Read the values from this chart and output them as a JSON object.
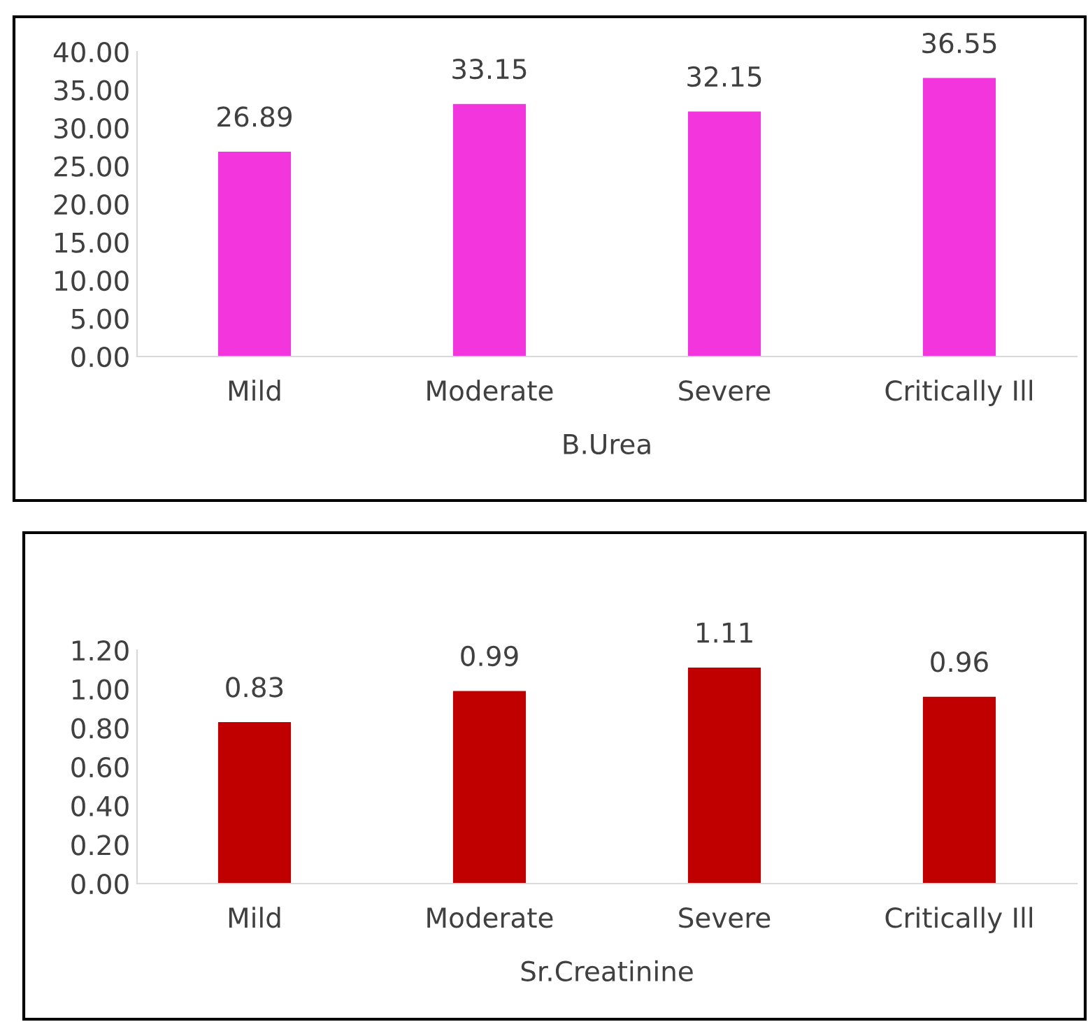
{
  "chart_data": [
    {
      "type": "bar",
      "xlabel": "B.Urea",
      "categories": [
        "Mild",
        "Moderate",
        "Severe",
        "Critically Ill"
      ],
      "values": [
        26.89,
        33.15,
        32.15,
        36.55
      ],
      "color": "#f235dd",
      "data_labels": true,
      "grid": false,
      "legend": false,
      "ylim": [
        0,
        40
      ],
      "yticks": [
        {
          "value": 0,
          "label": "0.00"
        },
        {
          "value": 5,
          "label": "5.00"
        },
        {
          "value": 10,
          "label": "10.00"
        },
        {
          "value": 15,
          "label": "15.00"
        },
        {
          "value": 20,
          "label": "20.00"
        },
        {
          "value": 25,
          "label": "25.00"
        },
        {
          "value": 30,
          "label": "30.00"
        },
        {
          "value": 35,
          "label": "35.00"
        },
        {
          "value": 40,
          "label": "40.00"
        }
      ]
    },
    {
      "type": "bar",
      "xlabel": "Sr.Creatinine",
      "categories": [
        "Mild",
        "Moderate",
        "Severe",
        "Critically Ill"
      ],
      "values": [
        0.83,
        0.99,
        1.11,
        0.96
      ],
      "color": "#c00000",
      "data_labels": true,
      "grid": false,
      "legend": false,
      "ylim": [
        0,
        1.2
      ],
      "yticks": [
        {
          "value": 0,
          "label": "0.00"
        },
        {
          "value": 0.2,
          "label": "0.20"
        },
        {
          "value": 0.4,
          "label": "0.40"
        },
        {
          "value": 0.6,
          "label": "0.60"
        },
        {
          "value": 0.8,
          "label": "0.80"
        },
        {
          "value": 1.0,
          "label": "1.00"
        },
        {
          "value": 1.2,
          "label": "1.20"
        }
      ]
    }
  ]
}
